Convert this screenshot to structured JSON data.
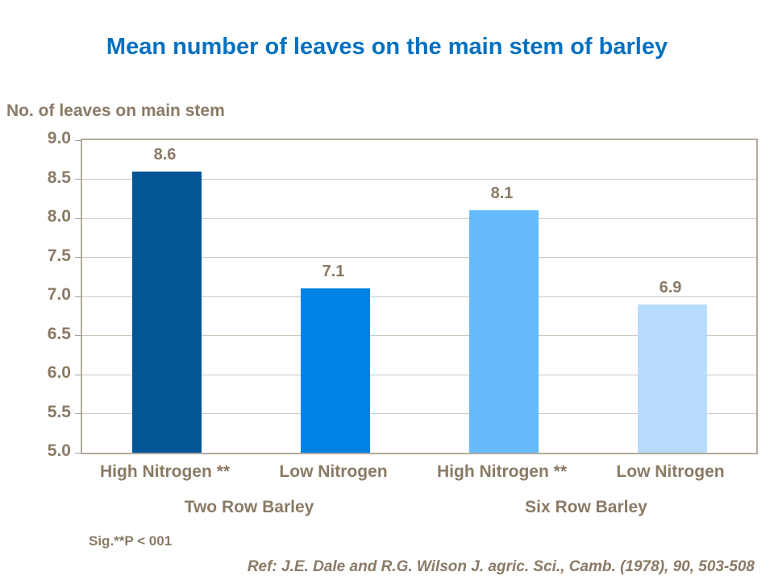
{
  "page": {
    "title": "Mean number of leaves on the main stem of barley",
    "sig_note": "Sig.**P  < 001",
    "reference": "Ref: J.E. Dale and R.G. Wilson J. agric. Sci., Camb. (1978), 90, 503-508"
  },
  "chart_data": {
    "type": "bar",
    "title": "Mean number of leaves on the main stem of barley",
    "ylabel": "No. of leaves on main stem",
    "xlabel": "",
    "categories": [
      "High Nitrogen **",
      "Low Nitrogen",
      "High Nitrogen **",
      "Low Nitrogen"
    ],
    "group_labels": [
      "Two Row Barley",
      "Six Row Barley"
    ],
    "values": [
      8.6,
      7.1,
      8.1,
      6.9
    ],
    "value_labels": [
      "8.6",
      "7.1",
      "8.1",
      "6.9"
    ],
    "bar_colors": [
      "#015696",
      "#0082E5",
      "#66BBFE",
      "#B7DCFD"
    ],
    "ylim": [
      5.0,
      9.0
    ],
    "ytick_step": 0.5,
    "ytick_labels": [
      "9.0",
      "8.5",
      "8.0",
      "7.5",
      "7.0",
      "6.5",
      "6.0",
      "5.5",
      "5.0"
    ],
    "grid": true,
    "legend": "none",
    "colors": {
      "title_text": "#0070C0",
      "body_text": "#8A7A65",
      "axis_border": "#B3AA9D",
      "gridline": "#CFC8BD",
      "background": "#FFFFFF"
    }
  }
}
